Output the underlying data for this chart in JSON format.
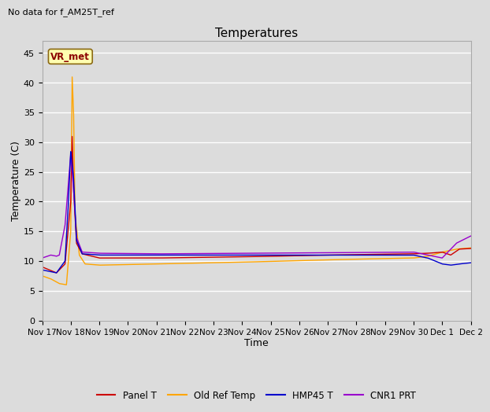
{
  "title": "Temperatures",
  "xlabel": "Time",
  "ylabel": "Temperature (C)",
  "no_data_text": "No data for f_AM25T_ref",
  "vr_met_label": "VR_met",
  "ylim": [
    0,
    47
  ],
  "yticks": [
    0,
    5,
    10,
    15,
    20,
    25,
    30,
    35,
    40,
    45
  ],
  "xlim": [
    0,
    15
  ],
  "background_color": "#dcdcdc",
  "plot_bg_color": "#dcdcdc",
  "series": {
    "Panel T": {
      "color": "#cc0000",
      "lw": 1.0
    },
    "Old Ref Temp": {
      "color": "#ffa500",
      "lw": 1.0
    },
    "HMP45 T": {
      "color": "#0000cc",
      "lw": 1.0
    },
    "CNR1 PRT": {
      "color": "#9900cc",
      "lw": 1.0
    }
  },
  "x_tick_labels": [
    "Nov 17",
    "Nov 18",
    "Nov 19",
    "Nov 20",
    "Nov 21",
    "Nov 22",
    "Nov 23",
    "Nov 24",
    "Nov 25",
    "Nov 26",
    "Nov 27",
    "Nov 28",
    "Nov 29",
    "Nov 30",
    "Dec 1",
    "Dec 2"
  ]
}
